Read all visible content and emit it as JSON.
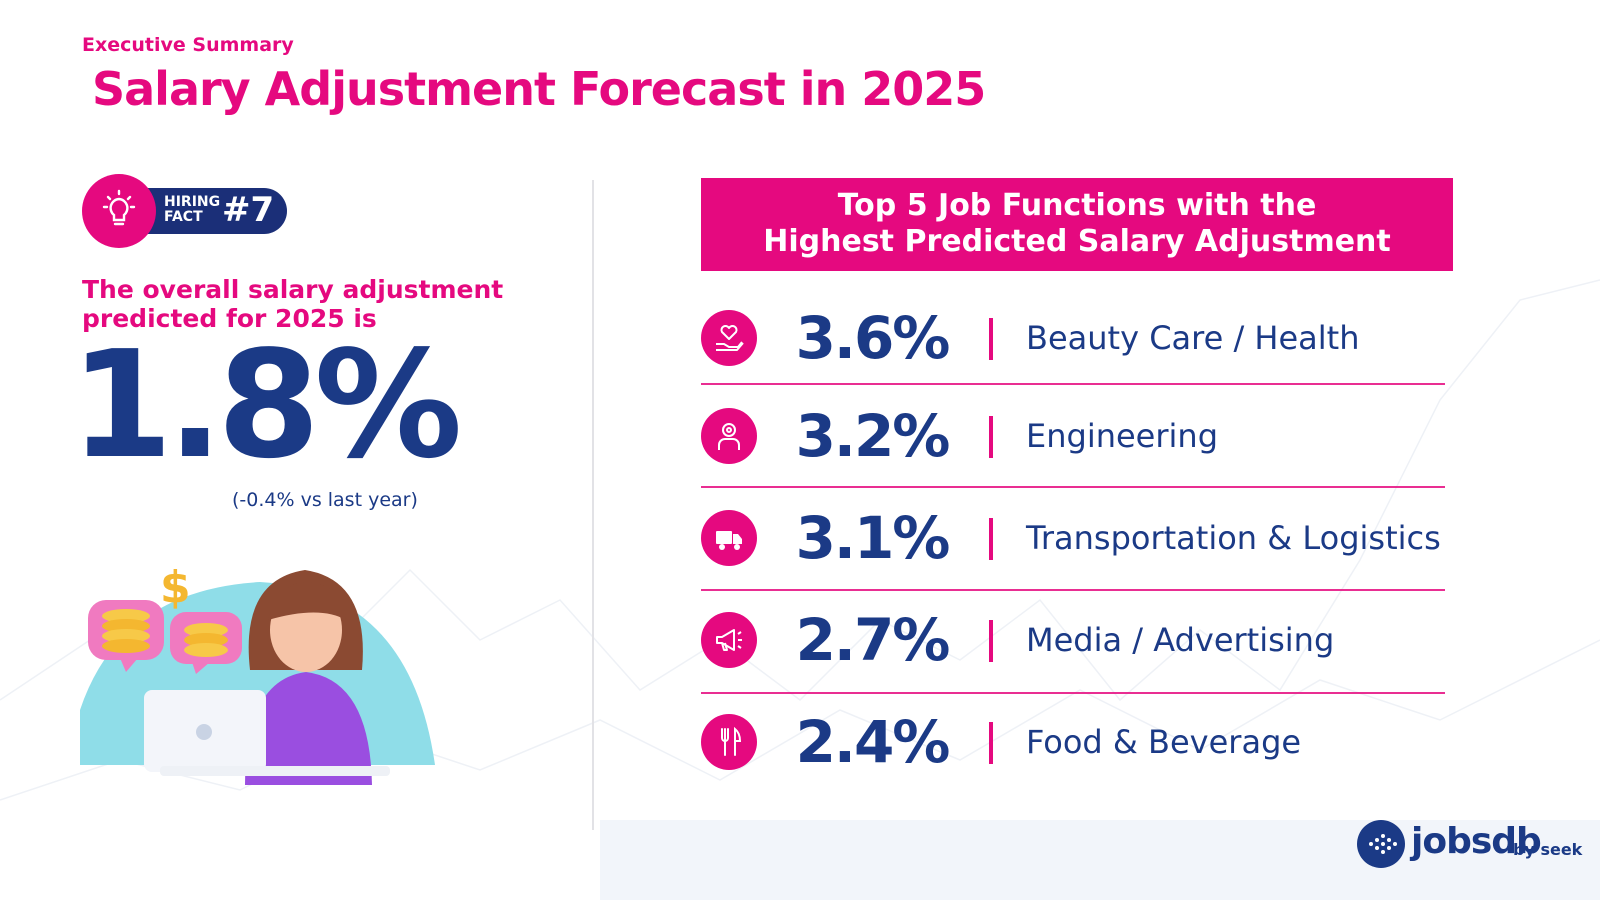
{
  "header": {
    "kicker": "Executive Summary",
    "title": "Salary Adjustment Forecast in 2025"
  },
  "badge": {
    "label_line1": "HIRING",
    "label_line2": "FACT",
    "number": "#7",
    "icon": "lightbulb-icon"
  },
  "summary": {
    "lead": "The overall salary adjustment predicted for 2025 is",
    "value": "1.8%",
    "change": "(-0.4% vs last year)"
  },
  "panel": {
    "title_line1": "Top 5 Job Functions with the",
    "title_line2": "Highest Predicted Salary Adjustment",
    "rows": [
      {
        "pct": "3.6%",
        "name": "Beauty Care / Health",
        "icon": "heart-hand-icon"
      },
      {
        "pct": "3.2%",
        "name": "Engineering",
        "icon": "engineer-icon"
      },
      {
        "pct": "3.1%",
        "name": "Transportation & Logistics",
        "icon": "truck-icon"
      },
      {
        "pct": "2.7%",
        "name": "Media / Advertising",
        "icon": "megaphone-icon"
      },
      {
        "pct": "2.4%",
        "name": "Food & Beverage",
        "icon": "cutlery-icon"
      }
    ]
  },
  "illustration": {
    "currency_symbol": "$"
  },
  "brand": {
    "name": "jobsdb",
    "by": "by seek"
  },
  "colors": {
    "accent": "#e5097f",
    "navy": "#1b3a86",
    "badge_navy": "#1b2f78"
  }
}
